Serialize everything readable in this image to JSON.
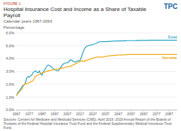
{
  "chart_data": {
    "type": "line",
    "figure_label": "FIGURE 1",
    "title": "Hospital Insurance Cost and Income as a Share of Taxable Payroll",
    "subtitle": "Calendar years 1967-2093",
    "ylabel": "Percentage",
    "source": "Sources: Centers for Medicare and Medicaid Services (CMS), April 2019. 2019 Annual Report of the Boards of Trustees of the Federal Hospital Insurance Trust Fund and the Federal Supplementary Medical Insurance Trust Fund.",
    "logo_text": "TPC",
    "grid": true,
    "xlim": [
      1967,
      2093
    ],
    "ylim": [
      0,
      6.0
    ],
    "xticks": [
      1967,
      1977,
      1987,
      1997,
      2007,
      2017,
      2027,
      2037,
      2047,
      2057,
      2067,
      2077,
      2087
    ],
    "yticks": [
      {
        "value": 0.0,
        "label": "0.0%"
      },
      {
        "value": 1.0,
        "label": "1.0%"
      },
      {
        "value": 2.0,
        "label": "2.0%"
      },
      {
        "value": 3.0,
        "label": "3.0%"
      },
      {
        "value": 4.0,
        "label": "4.0%"
      },
      {
        "value": 5.0,
        "label": "5.0%"
      },
      {
        "value": 6.0,
        "label": "6.0%"
      }
    ],
    "x": [
      1967,
      1968,
      1969,
      1970,
      1971,
      1972,
      1973,
      1974,
      1975,
      1976,
      1977,
      1978,
      1979,
      1980,
      1981,
      1982,
      1983,
      1984,
      1985,
      1986,
      1987,
      1988,
      1989,
      1990,
      1991,
      1992,
      1993,
      1994,
      1995,
      1996,
      1997,
      1998,
      1999,
      2000,
      2001,
      2002,
      2003,
      2004,
      2005,
      2006,
      2007,
      2008,
      2009,
      2010,
      2011,
      2012,
      2013,
      2014,
      2015,
      2016,
      2017,
      2018,
      2019,
      2020,
      2021,
      2022,
      2023,
      2024,
      2025,
      2026,
      2027,
      2028,
      2029,
      2030,
      2031,
      2032,
      2033,
      2034,
      2035,
      2036,
      2037,
      2038,
      2039,
      2040,
      2041,
      2042,
      2043,
      2044,
      2045,
      2046,
      2047,
      2048,
      2049,
      2050,
      2051,
      2052,
      2053,
      2054,
      2055,
      2056,
      2057,
      2058,
      2059,
      2060,
      2061,
      2062,
      2063,
      2064,
      2065,
      2066,
      2067,
      2068,
      2069,
      2070,
      2071,
      2072,
      2073,
      2074,
      2075,
      2076,
      2077,
      2078,
      2079,
      2080,
      2081,
      2082,
      2083,
      2084,
      2085,
      2086,
      2087,
      2088,
      2089,
      2090,
      2091,
      2092,
      2093
    ],
    "series": [
      {
        "name": "Cost",
        "color": "#1a9ec2",
        "values": [
          1.1,
          1.35,
          1.45,
          1.6,
          1.75,
          1.9,
          1.95,
          2.1,
          2.5,
          2.6,
          2.55,
          2.65,
          2.7,
          2.9,
          3.0,
          3.05,
          2.95,
          2.9,
          3.05,
          2.8,
          2.7,
          2.95,
          3.1,
          3.25,
          3.45,
          3.5,
          3.45,
          3.4,
          3.3,
          3.2,
          3.15,
          3.1,
          3.05,
          3.05,
          3.2,
          3.35,
          3.5,
          3.6,
          3.65,
          3.65,
          3.7,
          3.72,
          3.9,
          3.9,
          3.82,
          3.78,
          3.72,
          3.78,
          3.82,
          3.82,
          3.88,
          4.1,
          4.4,
          4.7,
          4.85,
          4.95,
          5.0,
          5.02,
          5.05,
          5.08,
          5.1,
          5.13,
          5.17,
          5.2,
          5.25,
          5.3,
          5.32,
          5.33,
          5.33,
          5.33,
          5.33,
          5.33,
          5.34,
          5.34,
          5.35,
          5.36,
          5.37,
          5.37,
          5.37,
          5.37,
          5.38,
          5.38,
          5.38,
          5.38,
          5.38,
          5.39,
          5.39,
          5.4,
          5.4,
          5.4,
          5.4,
          5.4,
          5.4,
          5.4,
          5.41,
          5.41,
          5.42,
          5.42,
          5.42,
          5.42,
          5.42,
          5.42,
          5.42,
          5.42,
          5.43,
          5.43,
          5.43,
          5.43,
          5.43,
          5.43,
          5.43,
          5.43,
          5.43,
          5.43,
          5.43,
          5.43,
          5.43,
          5.43,
          5.43,
          5.43,
          5.43,
          5.43,
          5.43,
          5.43,
          5.43,
          5.43,
          5.43
        ]
      },
      {
        "name": "Income",
        "color": "#f0a500",
        "values": [
          1.1,
          1.28,
          1.38,
          1.52,
          1.58,
          1.78,
          1.98,
          2.08,
          2.03,
          2.08,
          2.13,
          2.18,
          2.23,
          2.28,
          2.48,
          2.63,
          2.68,
          2.73,
          2.78,
          2.83,
          2.88,
          2.93,
          2.93,
          2.98,
          3.03,
          3.03,
          3.08,
          3.08,
          3.13,
          3.13,
          3.13,
          3.18,
          3.18,
          3.18,
          3.23,
          3.23,
          3.28,
          3.28,
          3.33,
          3.33,
          3.38,
          3.38,
          3.38,
          3.43,
          3.48,
          3.53,
          3.58,
          3.63,
          3.68,
          3.73,
          3.78,
          3.83,
          3.83,
          3.78,
          3.83,
          3.88,
          3.88,
          3.93,
          3.98,
          3.98,
          4.03,
          4.08,
          4.08,
          4.13,
          4.13,
          4.13,
          4.13,
          4.13,
          4.13,
          4.16,
          4.18,
          4.18,
          4.2,
          4.21,
          4.23,
          4.23,
          4.25,
          4.26,
          4.26,
          4.28,
          4.28,
          4.28,
          4.28,
          4.28,
          4.28,
          4.3,
          4.31,
          4.31,
          4.32,
          4.32,
          4.33,
          4.33,
          4.33,
          4.33,
          4.33,
          4.33,
          4.33,
          4.33,
          4.33,
          4.33,
          4.33,
          4.33,
          4.33,
          4.33,
          4.33,
          4.33,
          4.33,
          4.33,
          4.33,
          4.33,
          4.33,
          4.33,
          4.33,
          4.33,
          4.33,
          4.33,
          4.33,
          4.33,
          4.33,
          4.33,
          4.33,
          4.33,
          4.33,
          4.33,
          4.33,
          4.33,
          4.33
        ]
      }
    ]
  }
}
